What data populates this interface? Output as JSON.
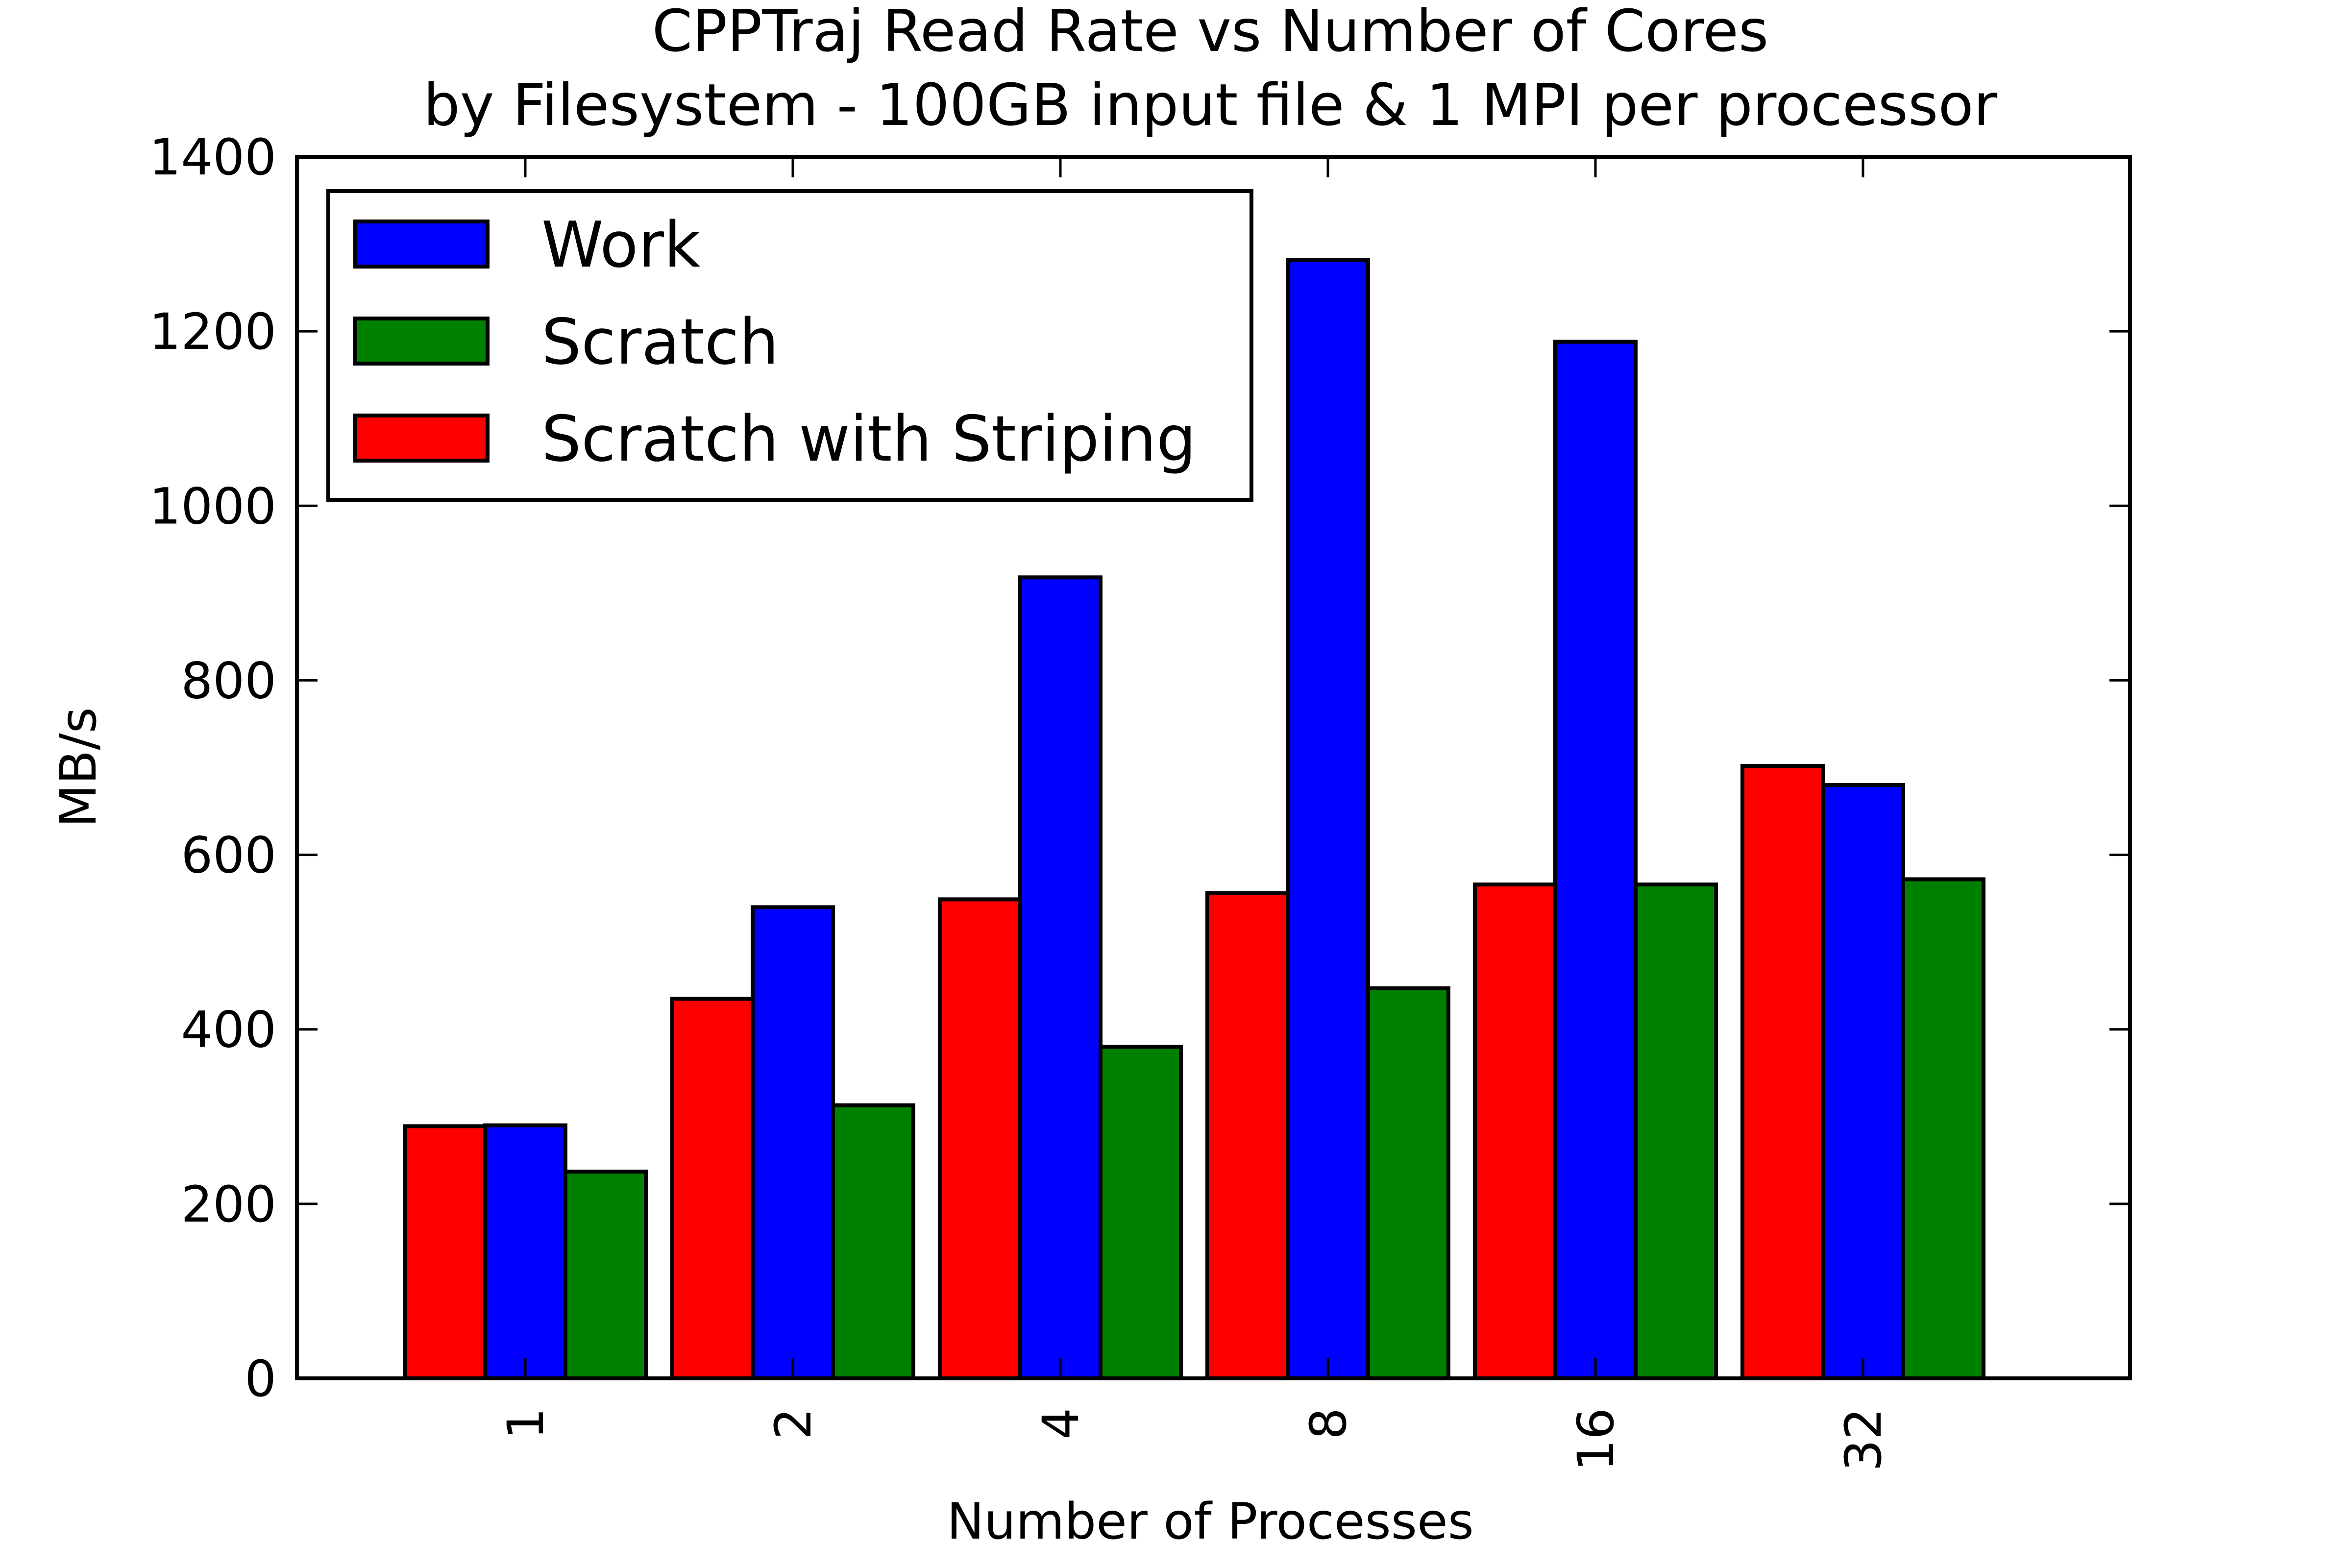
{
  "chart_data": {
    "type": "bar",
    "title": "CPPTraj Read Rate vs Number of Cores",
    "subtitle": "by Filesystem - 100GB input file & 1 MPI per processor",
    "xlabel": "Number of Processes",
    "ylabel": "MB/s",
    "categories": [
      "1",
      "2",
      "4",
      "8",
      "16",
      "32"
    ],
    "ylim": [
      0,
      1400
    ],
    "yticks": [
      "0",
      "200",
      "400",
      "600",
      "800",
      "1000",
      "1200",
      "1400"
    ],
    "legend_position": "top-left",
    "grid": false,
    "series": [
      {
        "name": "Work",
        "color": "#0000ff",
        "values": [
          290,
          540,
          918,
          1282,
          1188,
          680
        ]
      },
      {
        "name": "Scratch",
        "color": "#008000",
        "values": [
          237,
          313,
          380,
          447,
          566,
          572
        ]
      },
      {
        "name": "Scratch with Striping",
        "color": "#ff0000",
        "values": [
          289,
          435,
          549,
          556,
          566,
          702
        ]
      }
    ]
  }
}
